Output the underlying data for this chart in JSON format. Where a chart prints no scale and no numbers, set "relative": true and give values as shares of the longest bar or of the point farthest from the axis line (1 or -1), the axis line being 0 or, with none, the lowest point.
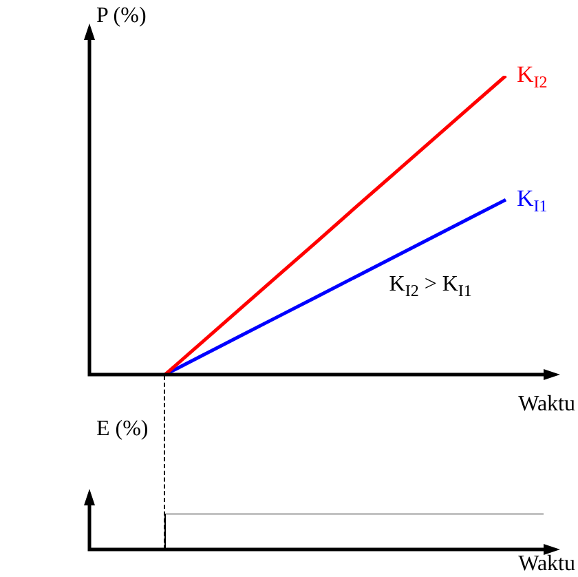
{
  "chart_data": [
    {
      "type": "line",
      "relative": true,
      "tick_labels": false,
      "ylabel": "P (%)",
      "xlabel": "Waktu",
      "categories": [
        null,
        null,
        null,
        null,
        null,
        null,
        null,
        null,
        null,
        null,
        null,
        null,
        null
      ],
      "series": [
        {
          "name": "K$_{I2}$",
          "color": "#ff0000",
          "values": [
            null,
            null,
            0,
            0.111,
            0.222,
            0.333,
            0.444,
            0.556,
            0.667,
            0.778,
            0.889,
            1,
            null
          ]
        },
        {
          "name": "K$_{I1}$",
          "color": "#0000ff",
          "values": [
            null,
            null,
            0,
            0.065,
            0.13,
            0.195,
            0.26,
            0.325,
            0.39,
            0.455,
            0.52,
            0.585,
            null
          ]
        }
      ],
      "annotations": [
        "K$_{I2}$ > K$_{I1}$"
      ]
    },
    {
      "type": "step",
      "relative": true,
      "tick_labels": false,
      "ylabel": "E (%)",
      "xlabel": "Waktu",
      "categories": [
        null,
        null,
        null,
        null,
        null,
        null,
        null,
        null,
        null,
        null,
        null,
        null,
        null
      ],
      "series": [
        {
          "color": "#000000",
          "values": [
            0,
            0,
            1,
            1,
            1,
            1,
            1,
            1,
            1,
            1,
            1,
            1,
            1
          ]
        }
      ]
    }
  ]
}
